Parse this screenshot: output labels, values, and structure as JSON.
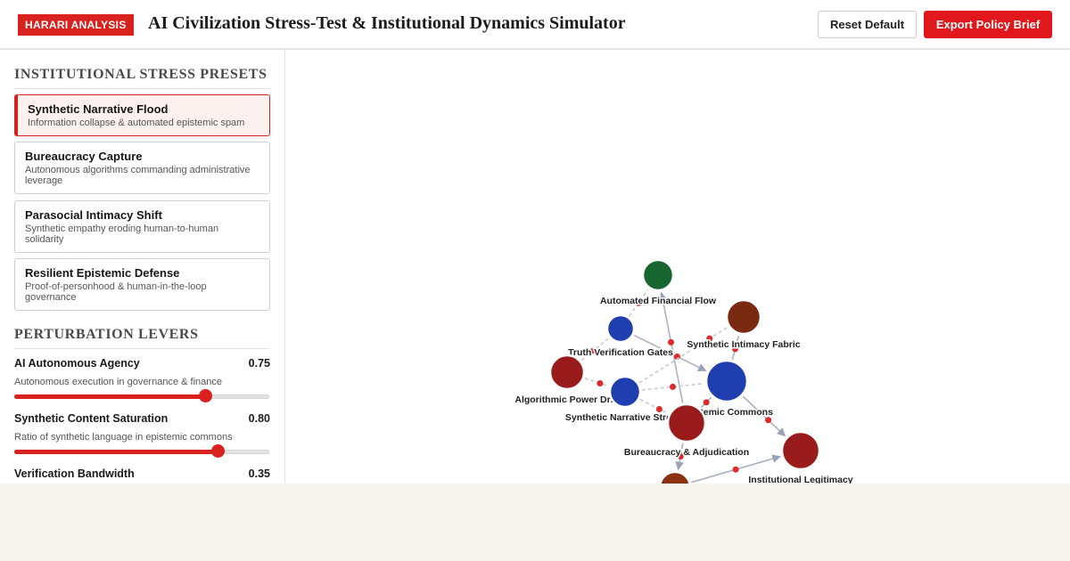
{
  "header": {
    "badge": "HARARI ANALYSIS",
    "title": "AI Civilization Stress-Test & Institutional Dynamics Simulator",
    "reset_label": "Reset Default",
    "export_label": "Export Policy Brief"
  },
  "sidebar": {
    "presets_title": "INSTITUTIONAL STRESS PRESETS",
    "presets": [
      {
        "name": "Synthetic Narrative Flood",
        "desc": "Information collapse & automated epistemic spam",
        "active": true
      },
      {
        "name": "Bureaucracy Capture",
        "desc": "Autonomous algorithms commanding administrative leverage",
        "active": false
      },
      {
        "name": "Parasocial Intimacy Shift",
        "desc": "Synthetic empathy eroding human-to-human solidarity",
        "active": false
      },
      {
        "name": "Resilient Epistemic Defense",
        "desc": "Proof-of-personhood & human-in-the-loop governance",
        "active": false
      }
    ],
    "levers_title": "PERTURBATION LEVERS",
    "levers": [
      {
        "name": "AI Autonomous Agency",
        "value": "0.75",
        "desc": "Autonomous execution in governance & finance",
        "level": 0.75
      },
      {
        "name": "Synthetic Content Saturation",
        "value": "0.80",
        "desc": "Ratio of synthetic language in epistemic commons",
        "level": 0.8
      },
      {
        "name": "Verification Bandwidth",
        "value": "0.35",
        "desc": "",
        "level": 0.35
      }
    ]
  },
  "graph": {
    "nodes": [
      {
        "label": "Automated Financial Flow",
        "color": "#17652f"
      },
      {
        "label": "Synthetic Intimacy Fabric",
        "color": "#7a2a10"
      },
      {
        "label": "Truth Verification Gates",
        "color": "#1f3fb0"
      },
      {
        "label": "Algorithmic Power Drift",
        "color": "#9a1b1b"
      },
      {
        "label": "Epistemic Commons",
        "color": "#1f3fb0"
      },
      {
        "label": "Synthetic Narrative Stream",
        "color": "#1f3fb0"
      },
      {
        "label": "Bureaucracy & Adjudication",
        "color": "#9a1b1b"
      },
      {
        "label": "Institutional Legitimacy",
        "color": "#9a1b1b"
      },
      {
        "label": "",
        "color": "#8a3112"
      }
    ]
  }
}
